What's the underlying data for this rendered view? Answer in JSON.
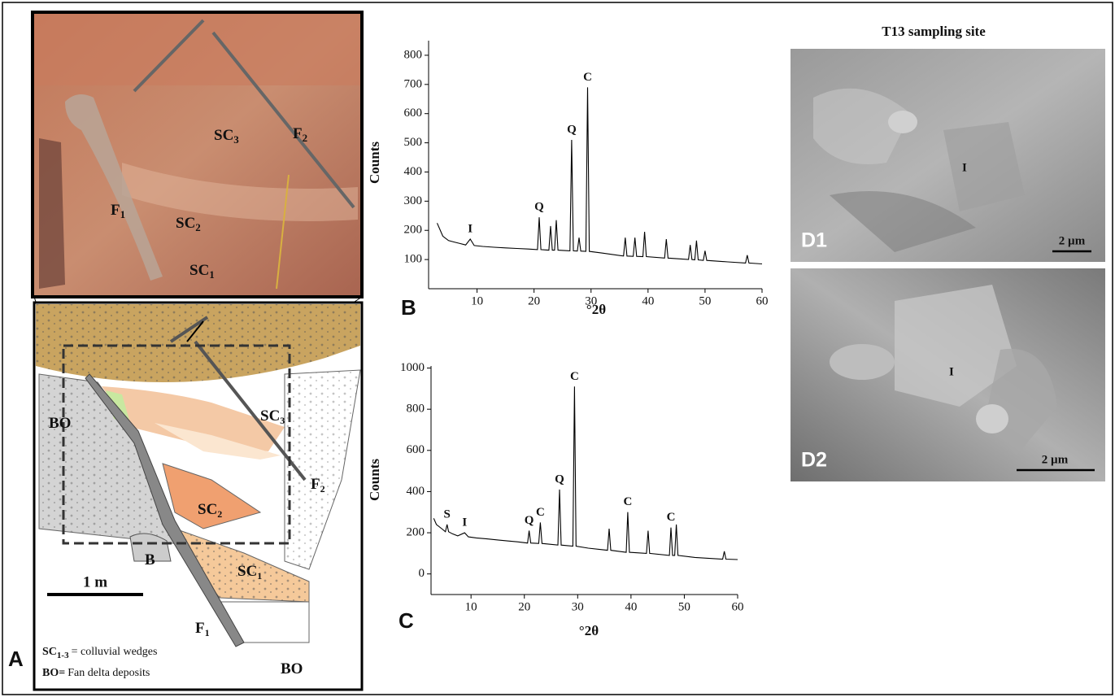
{
  "panel_a": {
    "letter": "A",
    "photo_labels": [
      {
        "text": "SC",
        "sub": "3"
      },
      {
        "text": "F",
        "sub": "2"
      },
      {
        "text": "F",
        "sub": "1"
      },
      {
        "text": "SC",
        "sub": "2"
      },
      {
        "text": "SC",
        "sub": "1"
      }
    ],
    "diagram_labels": [
      {
        "text": "BO"
      },
      {
        "text": "SC",
        "sub": "3"
      },
      {
        "text": "SC",
        "sub": "2"
      },
      {
        "text": "B"
      },
      {
        "text": "SC",
        "sub": "1"
      },
      {
        "text": "F",
        "sub": "1"
      },
      {
        "text": "F",
        "sub": "2"
      },
      {
        "text": "BO"
      }
    ],
    "scale_bar": "1 m",
    "legend": [
      {
        "term": "SC",
        "sub": "1-3",
        "text": "= colluvial wedges"
      },
      {
        "term": "BO=",
        "text": "Fan delta deposits"
      }
    ]
  },
  "chart_data": [
    {
      "type": "line",
      "panel_label": "B",
      "x_label": "°2θ",
      "y_label": "Counts",
      "color": "#000",
      "xlim": [
        1.5,
        60
      ],
      "ylim": [
        0,
        850
      ],
      "xticks": [
        10,
        20,
        30,
        40,
        50,
        60
      ],
      "yticks": [
        100,
        200,
        300,
        400,
        500,
        600,
        700,
        800
      ],
      "x": [
        3,
        4,
        5,
        6,
        7,
        8,
        8.8,
        9.5,
        11,
        13,
        15,
        17,
        19,
        20.6,
        20.9,
        21.2,
        22.6,
        22.9,
        23.2,
        23.6,
        23.9,
        24.2,
        26.3,
        26.6,
        26.9,
        27.6,
        27.9,
        28.2,
        29.1,
        29.4,
        29.7,
        32,
        35.7,
        36,
        36.3,
        37.4,
        37.7,
        38,
        39.1,
        39.4,
        39.7,
        42.9,
        43.2,
        43.5,
        47.1,
        47.4,
        47.7,
        48.2,
        48.5,
        48.8,
        49.7,
        50,
        50.3,
        54,
        57.1,
        57.4,
        57.7,
        60
      ],
      "values": [
        225,
        180,
        165,
        160,
        155,
        150,
        170,
        148,
        145,
        142,
        140,
        138,
        136,
        134,
        245,
        134,
        132,
        215,
        132,
        132,
        235,
        132,
        130,
        510,
        130,
        129,
        175,
        129,
        128,
        690,
        128,
        122,
        112,
        175,
        112,
        111,
        175,
        111,
        110,
        195,
        110,
        105,
        170,
        105,
        100,
        150,
        100,
        99,
        165,
        99,
        97,
        130,
        97,
        92,
        88,
        115,
        88,
        85
      ],
      "annotations": [
        {
          "label": "I",
          "x": 8.8
        },
        {
          "label": "Q",
          "x": 20.9
        },
        {
          "label": "Q",
          "x": 26.6
        },
        {
          "label": "C",
          "x": 29.4
        }
      ]
    },
    {
      "type": "line",
      "panel_label": "C",
      "x_label": "°2θ",
      "y_label": "Counts",
      "color": "#000",
      "xlim": [
        2.5,
        60
      ],
      "ylim": [
        -100,
        1010
      ],
      "xticks": [
        10,
        20,
        30,
        40,
        50,
        60
      ],
      "yticks": [
        0,
        200,
        400,
        600,
        800,
        1000
      ],
      "x": [
        3,
        3.5,
        4.5,
        5.2,
        5.5,
        5.8,
        6.5,
        7.5,
        8.8,
        9.5,
        11,
        13,
        15,
        17,
        19,
        20.6,
        20.9,
        21.2,
        22.7,
        23,
        23.3,
        26.3,
        26.6,
        26.9,
        29.1,
        29.4,
        29.7,
        32,
        35.6,
        35.9,
        36.2,
        39.1,
        39.4,
        39.7,
        42.9,
        43.2,
        43.5,
        47.2,
        47.5,
        47.8,
        48.2,
        48.5,
        48.8,
        52,
        57.2,
        57.5,
        57.8,
        60
      ],
      "values": [
        270,
        240,
        220,
        205,
        240,
        205,
        195,
        185,
        200,
        180,
        175,
        170,
        165,
        160,
        155,
        150,
        210,
        150,
        148,
        250,
        148,
        140,
        410,
        140,
        135,
        910,
        135,
        125,
        115,
        220,
        115,
        105,
        300,
        105,
        100,
        210,
        100,
        90,
        225,
        90,
        90,
        240,
        90,
        80,
        72,
        110,
        72,
        70
      ],
      "annotations": [
        {
          "label": "S",
          "x": 5.5
        },
        {
          "label": "I",
          "x": 8.8
        },
        {
          "label": "Q",
          "x": 20.9
        },
        {
          "label": "C",
          "x": 23
        },
        {
          "label": "Q",
          "x": 26.6
        },
        {
          "label": "C",
          "x": 29.4
        },
        {
          "label": "C",
          "x": 39.4
        },
        {
          "label": "C",
          "x": 47.5
        }
      ]
    }
  ],
  "panel_d": {
    "title": "T13 sampling site",
    "images": [
      {
        "letter": "D1",
        "label": "I",
        "scale": "2 µm"
      },
      {
        "letter": "D2",
        "label": "I",
        "scale": "2 µm"
      }
    ]
  }
}
